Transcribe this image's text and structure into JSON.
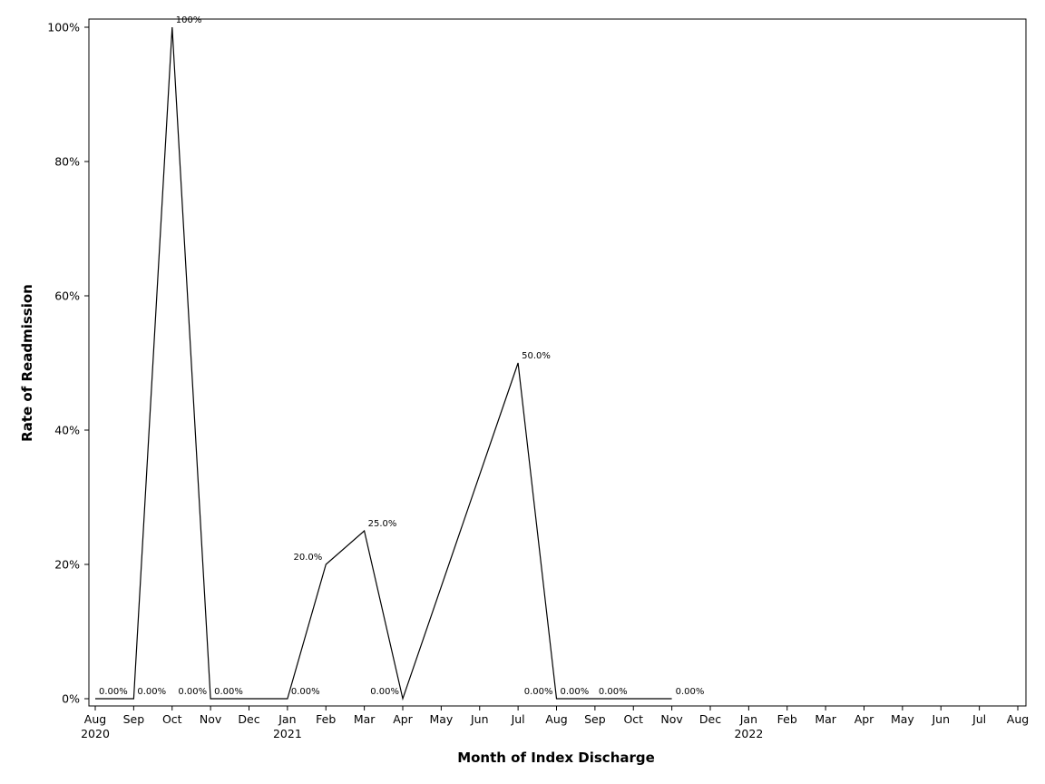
{
  "chart_data": {
    "type": "line",
    "xlabel": "Month of Index Discharge",
    "ylabel": "Rate of Readmission",
    "ylim": [
      0,
      1
    ],
    "y_ticks": [
      {
        "value": 0,
        "label": "0%"
      },
      {
        "value": 0.2,
        "label": "20%"
      },
      {
        "value": 0.4,
        "label": "40%"
      },
      {
        "value": 0.6,
        "label": "60%"
      },
      {
        "value": 0.8,
        "label": "80%"
      },
      {
        "value": 1.0,
        "label": "100%"
      }
    ],
    "x_range": [
      "2020-08",
      "2022-08"
    ],
    "x_ticks": [
      {
        "date": "2020-08",
        "label": "Aug",
        "year": "2020"
      },
      {
        "date": "2020-09",
        "label": "Sep"
      },
      {
        "date": "2020-10",
        "label": "Oct"
      },
      {
        "date": "2020-11",
        "label": "Nov"
      },
      {
        "date": "2020-12",
        "label": "Dec"
      },
      {
        "date": "2021-01",
        "label": "Jan",
        "year": "2021"
      },
      {
        "date": "2021-02",
        "label": "Feb"
      },
      {
        "date": "2021-03",
        "label": "Mar"
      },
      {
        "date": "2021-04",
        "label": "Apr"
      },
      {
        "date": "2021-05",
        "label": "May"
      },
      {
        "date": "2021-06",
        "label": "Jun"
      },
      {
        "date": "2021-07",
        "label": "Jul"
      },
      {
        "date": "2021-08",
        "label": "Aug"
      },
      {
        "date": "2021-09",
        "label": "Sep"
      },
      {
        "date": "2021-10",
        "label": "Oct"
      },
      {
        "date": "2021-11",
        "label": "Nov"
      },
      {
        "date": "2021-12",
        "label": "Dec"
      },
      {
        "date": "2022-01",
        "label": "Jan",
        "year": "2022"
      },
      {
        "date": "2022-02",
        "label": "Feb"
      },
      {
        "date": "2022-03",
        "label": "Mar"
      },
      {
        "date": "2022-04",
        "label": "Apr"
      },
      {
        "date": "2022-05",
        "label": "May"
      },
      {
        "date": "2022-06",
        "label": "Jun"
      },
      {
        "date": "2022-07",
        "label": "Jul"
      },
      {
        "date": "2022-08",
        "label": "Aug"
      }
    ],
    "series": [
      {
        "points": [
          {
            "x": "2020-08",
            "y": 0,
            "label": "0.00%",
            "label_pos": "right"
          },
          {
            "x": "2020-09",
            "y": 0,
            "label": "0.00%",
            "label_pos": "right"
          },
          {
            "x": "2020-10",
            "y": 1.0,
            "label": "100%",
            "label_pos": "right"
          },
          {
            "x": "2020-11",
            "y": 0,
            "label": "0.00%",
            "label_pos": "left"
          },
          {
            "x": "2020-11",
            "y": 0,
            "label": "0.00%",
            "label_pos": "right"
          },
          {
            "x": "2021-01",
            "y": 0,
            "label": "0.00%",
            "label_pos": "right"
          },
          {
            "x": "2021-02",
            "y": 0.2,
            "label": "20.0%",
            "label_pos": "left"
          },
          {
            "x": "2021-03",
            "y": 0.25,
            "label": "25.0%",
            "label_pos": "right"
          },
          {
            "x": "2021-04",
            "y": 0,
            "label": "0.00%",
            "label_pos": "left"
          },
          {
            "x": "2021-07",
            "y": 0.5,
            "label": "50.0%",
            "label_pos": "right"
          },
          {
            "x": "2021-08",
            "y": 0,
            "label": "0.00%",
            "label_pos": "left"
          },
          {
            "x": "2021-08",
            "y": 0,
            "label": "0.00%",
            "label_pos": "right"
          },
          {
            "x": "2021-09",
            "y": 0,
            "label": "0.00%",
            "label_pos": "right"
          },
          {
            "x": "2021-11",
            "y": 0,
            "label": "0.00%",
            "label_pos": "right"
          }
        ]
      }
    ],
    "grid": false,
    "legend": "none"
  }
}
